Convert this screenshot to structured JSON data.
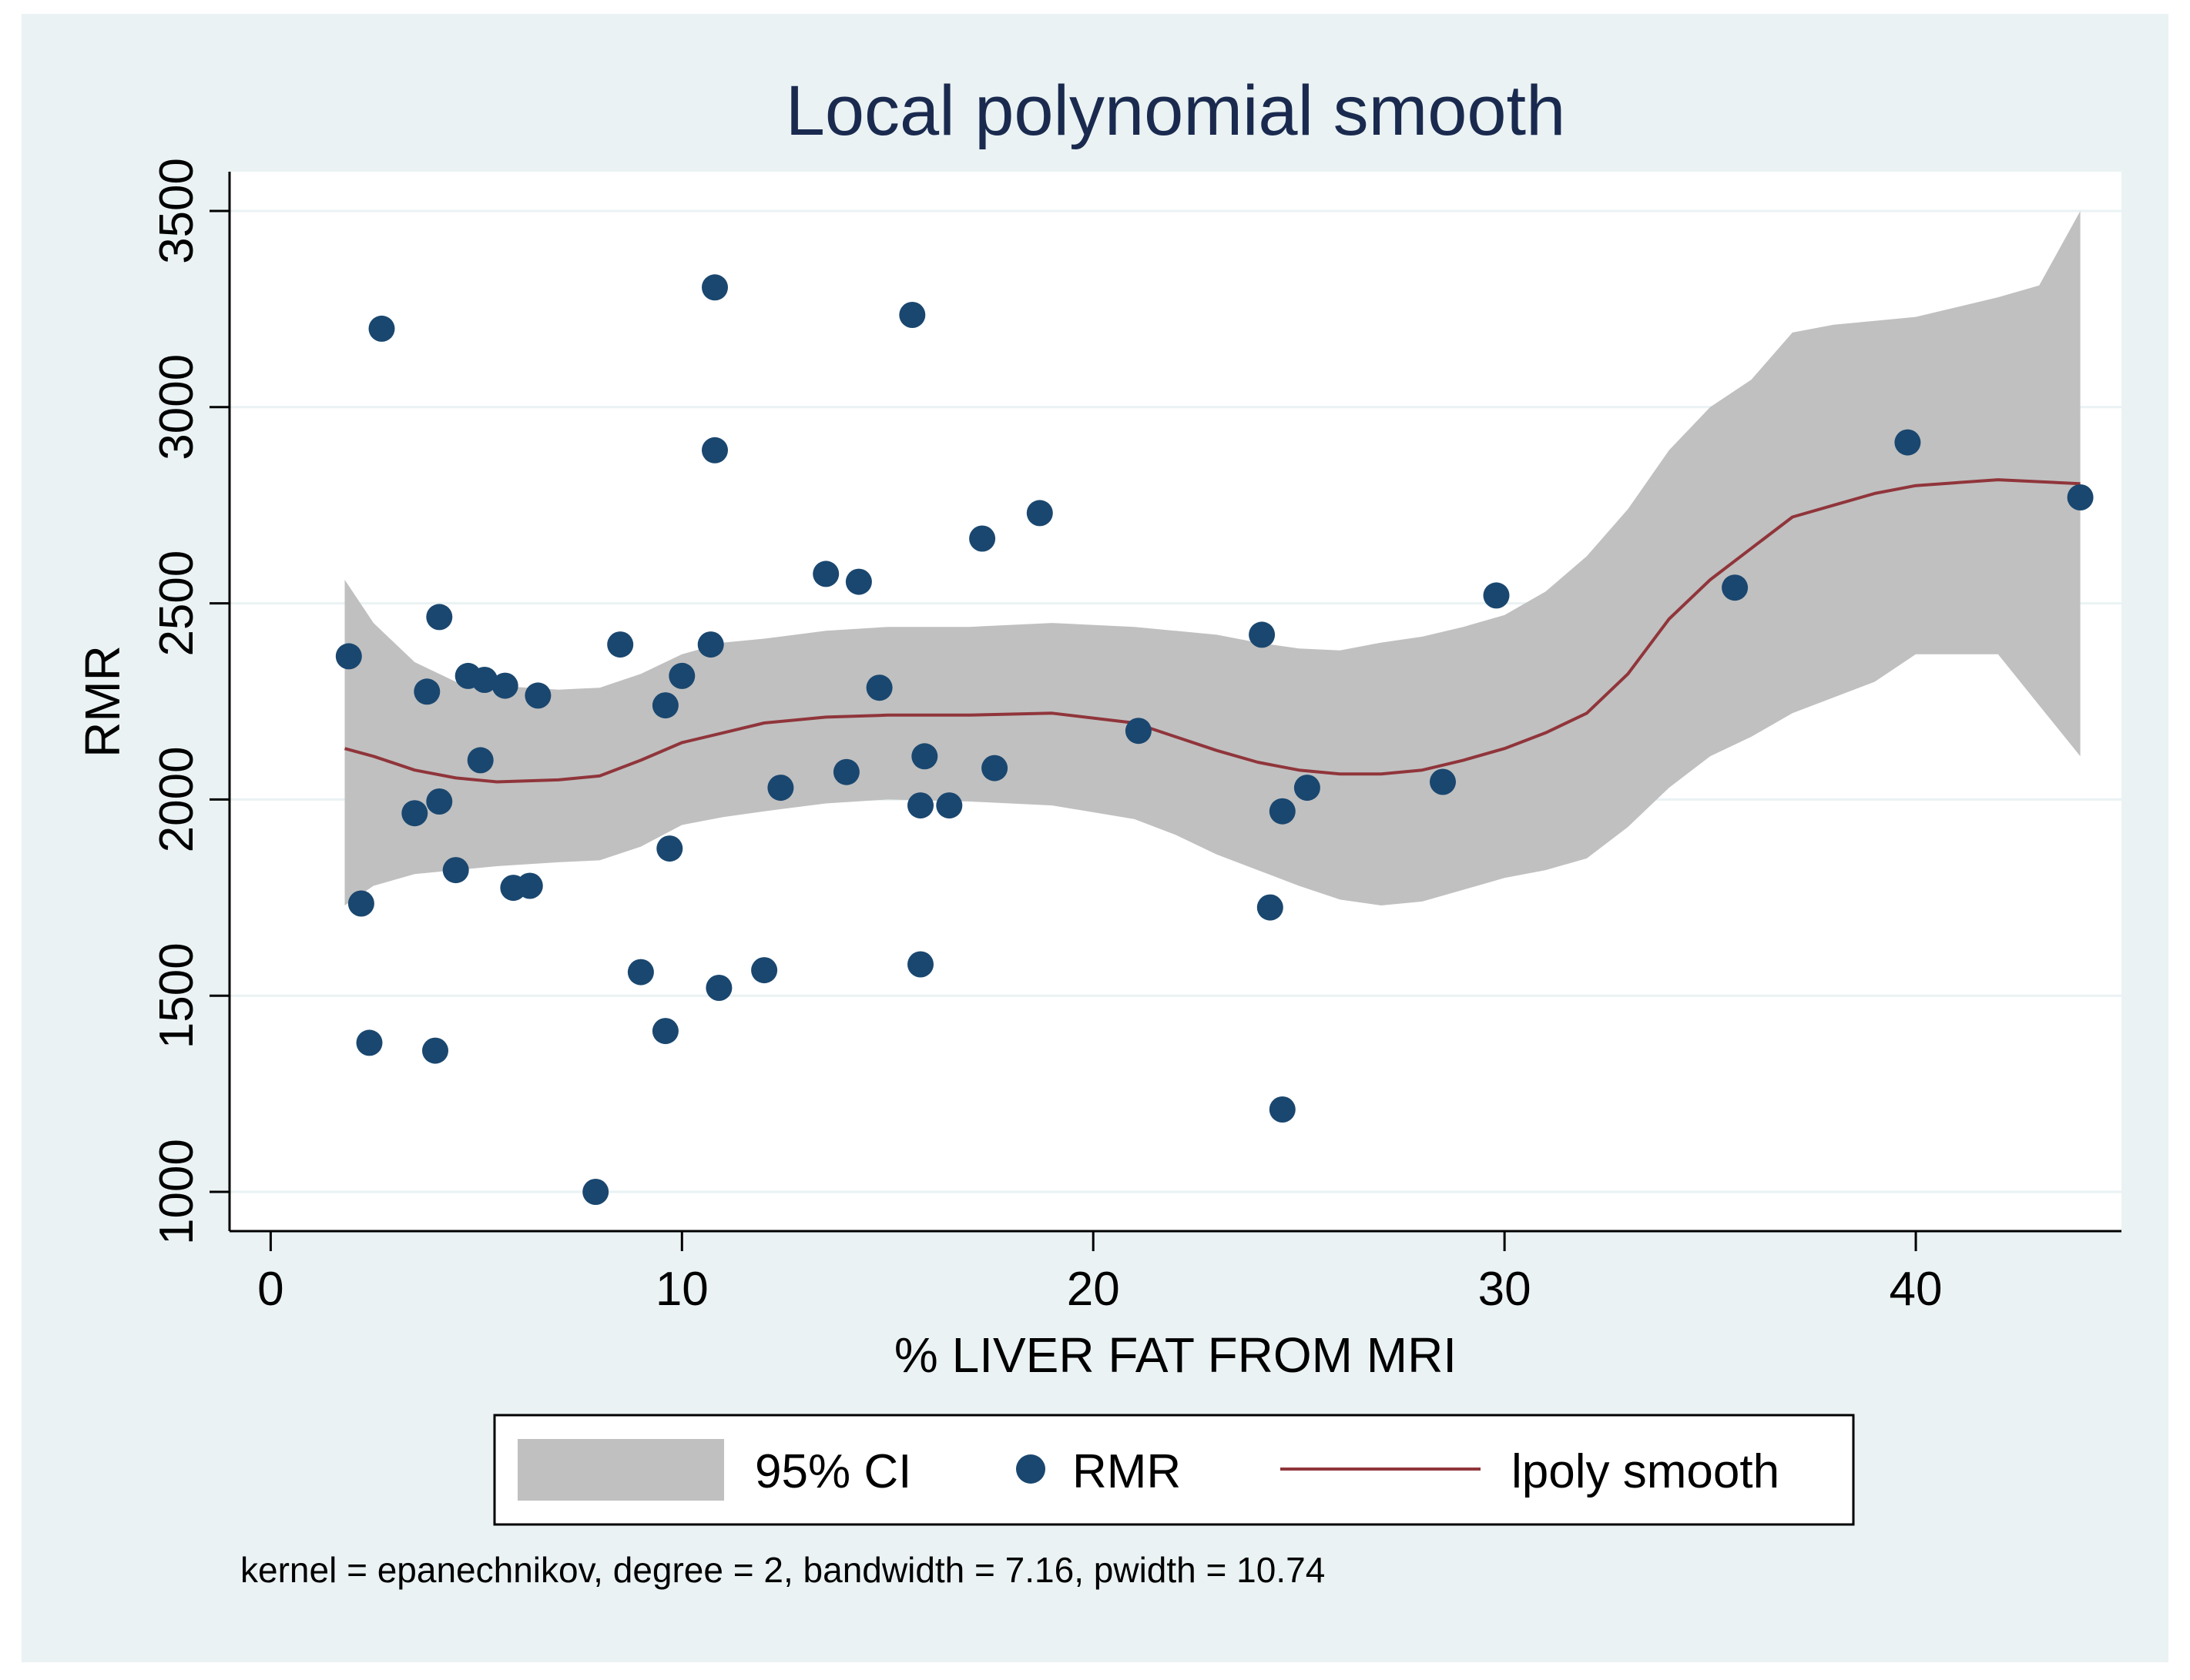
{
  "chart_data": {
    "type": "scatter",
    "title": "Local polynomial smooth",
    "xlabel": "% LIVER FAT FROM MRI",
    "ylabel": "RMR",
    "xlim": [
      -1,
      45
    ],
    "ylim": [
      900,
      3600
    ],
    "xticks": [
      0,
      10,
      20,
      30,
      40
    ],
    "yticks": [
      1000,
      1500,
      2000,
      2500,
      3000,
      3500
    ],
    "grid": true,
    "colors": {
      "outer_background": "#eaf2f3",
      "plot_background": "#ffffff",
      "gridline": "#eaf2f3",
      "title": "#1a2a4f",
      "ci_fill": "#c0c0c0",
      "points": "#1a476f",
      "smooth_line": "#90353b",
      "axis": "#000000",
      "text": "#000000"
    },
    "legend": {
      "position": "bottom",
      "entries": [
        {
          "label": "95% CI",
          "kind": "area"
        },
        {
          "label": "RMR",
          "kind": "marker"
        },
        {
          "label": "lpoly smooth",
          "kind": "line"
        }
      ]
    },
    "note": "kernel = epanechnikov, degree = 2, bandwidth = 7.16, pwidth = 10.74",
    "series": [
      {
        "name": "RMR",
        "kind": "scatter",
        "points": [
          [
            1.9,
            2365
          ],
          [
            2.2,
            1735
          ],
          [
            2.4,
            1380
          ],
          [
            2.7,
            3200
          ],
          [
            3.5,
            1965
          ],
          [
            3.8,
            2275
          ],
          [
            4.0,
            1360
          ],
          [
            4.1,
            2465
          ],
          [
            4.1,
            1995
          ],
          [
            4.5,
            1820
          ],
          [
            4.8,
            2315
          ],
          [
            5.1,
            2100
          ],
          [
            5.2,
            2305
          ],
          [
            5.7,
            2290
          ],
          [
            5.9,
            1775
          ],
          [
            6.3,
            1780
          ],
          [
            6.5,
            2265
          ],
          [
            7.9,
            1000
          ],
          [
            8.5,
            2395
          ],
          [
            9.0,
            1560
          ],
          [
            9.6,
            2240
          ],
          [
            9.6,
            1410
          ],
          [
            9.7,
            1875
          ],
          [
            10.0,
            2315
          ],
          [
            10.7,
            2395
          ],
          [
            10.8,
            3305
          ],
          [
            10.8,
            2890
          ],
          [
            10.9,
            1520
          ],
          [
            12.0,
            1565
          ],
          [
            12.4,
            2030
          ],
          [
            13.5,
            2575
          ],
          [
            14.0,
            2070
          ],
          [
            14.3,
            2555
          ],
          [
            14.8,
            2285
          ],
          [
            15.6,
            3235
          ],
          [
            15.8,
            1580
          ],
          [
            15.8,
            1985
          ],
          [
            15.9,
            2110
          ],
          [
            16.5,
            1985
          ],
          [
            17.3,
            2665
          ],
          [
            17.6,
            2080
          ],
          [
            18.7,
            2730
          ],
          [
            21.1,
            2175
          ],
          [
            24.1,
            2420
          ],
          [
            24.3,
            1725
          ],
          [
            24.6,
            1970
          ],
          [
            24.6,
            1210
          ],
          [
            25.2,
            2030
          ],
          [
            28.5,
            2045
          ],
          [
            29.8,
            2520
          ],
          [
            35.6,
            2540
          ],
          [
            39.8,
            2910
          ],
          [
            44.0,
            2770
          ]
        ]
      },
      {
        "name": "lpoly smooth",
        "kind": "line",
        "points": [
          [
            1.8,
            2130
          ],
          [
            2.5,
            2110
          ],
          [
            3.5,
            2075
          ],
          [
            4.5,
            2055
          ],
          [
            5.5,
            2045
          ],
          [
            7.0,
            2050
          ],
          [
            8.0,
            2060
          ],
          [
            9.0,
            2100
          ],
          [
            10.0,
            2145
          ],
          [
            11.0,
            2170
          ],
          [
            12.0,
            2195
          ],
          [
            13.5,
            2210
          ],
          [
            15.0,
            2215
          ],
          [
            17.0,
            2215
          ],
          [
            19.0,
            2220
          ],
          [
            21.0,
            2195
          ],
          [
            22.0,
            2160
          ],
          [
            23.0,
            2125
          ],
          [
            24.0,
            2095
          ],
          [
            25.0,
            2075
          ],
          [
            26.0,
            2065
          ],
          [
            27.0,
            2065
          ],
          [
            28.0,
            2075
          ],
          [
            29.0,
            2100
          ],
          [
            30.0,
            2130
          ],
          [
            31.0,
            2170
          ],
          [
            32.0,
            2220
          ],
          [
            33.0,
            2320
          ],
          [
            34.0,
            2460
          ],
          [
            35.0,
            2560
          ],
          [
            36.0,
            2640
          ],
          [
            37.0,
            2720
          ],
          [
            38.0,
            2750
          ],
          [
            39.0,
            2780
          ],
          [
            40.0,
            2800
          ],
          [
            42.0,
            2815
          ],
          [
            44.0,
            2805
          ]
        ]
      },
      {
        "name": "95% CI",
        "kind": "band",
        "x": [
          1.8,
          2.5,
          3.5,
          4.5,
          5.5,
          7.0,
          8.0,
          9.0,
          10.0,
          11.0,
          12.0,
          13.5,
          15.0,
          17.0,
          19.0,
          21.0,
          22.0,
          23.0,
          24.0,
          25.0,
          26.0,
          27.0,
          28.0,
          29.0,
          30.0,
          31.0,
          32.0,
          33.0,
          34.0,
          35.0,
          36.0,
          37.0,
          38.0,
          39.0,
          40.0,
          42.0,
          43.0,
          44.0
        ],
        "upper": [
          2560,
          2450,
          2350,
          2300,
          2290,
          2280,
          2285,
          2320,
          2370,
          2400,
          2410,
          2430,
          2440,
          2440,
          2450,
          2440,
          2430,
          2420,
          2400,
          2385,
          2380,
          2400,
          2415,
          2440,
          2470,
          2530,
          2620,
          2740,
          2890,
          3000,
          3070,
          3190,
          3210,
          3220,
          3230,
          3280,
          3310,
          3500
        ],
        "lower": [
          1730,
          1780,
          1810,
          1820,
          1830,
          1840,
          1845,
          1880,
          1935,
          1955,
          1970,
          1990,
          2000,
          1995,
          1985,
          1950,
          1910,
          1860,
          1820,
          1780,
          1745,
          1730,
          1740,
          1770,
          1800,
          1820,
          1850,
          1930,
          2030,
          2110,
          2160,
          2220,
          2260,
          2300,
          2370,
          2370,
          2240,
          2110
        ]
      }
    ]
  }
}
